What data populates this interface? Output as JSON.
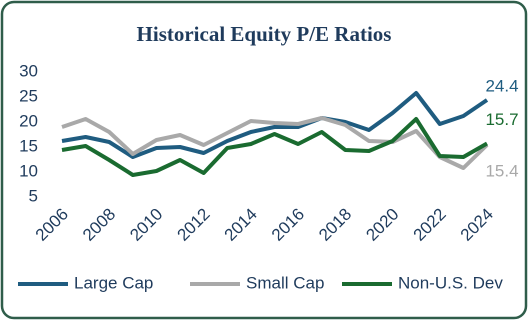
{
  "chart_data": {
    "type": "line",
    "title": "Historical Equity P/E Ratios",
    "x": [
      2006,
      2007,
      2008,
      2009,
      2010,
      2011,
      2012,
      2013,
      2014,
      2015,
      2016,
      2017,
      2018,
      2019,
      2020,
      2021,
      2022,
      2023,
      2024
    ],
    "xlim": [
      2006,
      2024
    ],
    "xticks": [
      2006,
      2008,
      2010,
      2012,
      2014,
      2016,
      2018,
      2020,
      2022,
      2024
    ],
    "ylim": [
      5,
      30
    ],
    "yticks": [
      5,
      10,
      15,
      20,
      25,
      30
    ],
    "grid": false,
    "legend": "bottom",
    "series": [
      {
        "name": "Large Cap",
        "color": "#1f5c80",
        "values": [
          16.2,
          17,
          16,
          13,
          14.8,
          15,
          13.8,
          16.2,
          18,
          19,
          19,
          20.8,
          20,
          18.4,
          21.8,
          25.8,
          19.6,
          21.2,
          24.4
        ]
      },
      {
        "name": "Small Cap",
        "color": "#a9a9a9",
        "values": [
          19,
          20.6,
          18,
          13.6,
          16.4,
          17.4,
          15.4,
          17.8,
          20.2,
          19.8,
          19.6,
          20.8,
          19.4,
          16.2,
          16,
          18.2,
          13,
          10.8,
          15.4
        ]
      },
      {
        "name": "Non-U.S. Dev",
        "color": "#1a6b30",
        "values": [
          14.4,
          15.2,
          12.4,
          9.4,
          10.2,
          12.4,
          9.8,
          14.8,
          15.6,
          17.6,
          15.6,
          18,
          14.4,
          14.2,
          16.2,
          20.6,
          13.2,
          13,
          15.7
        ]
      }
    ]
  }
}
